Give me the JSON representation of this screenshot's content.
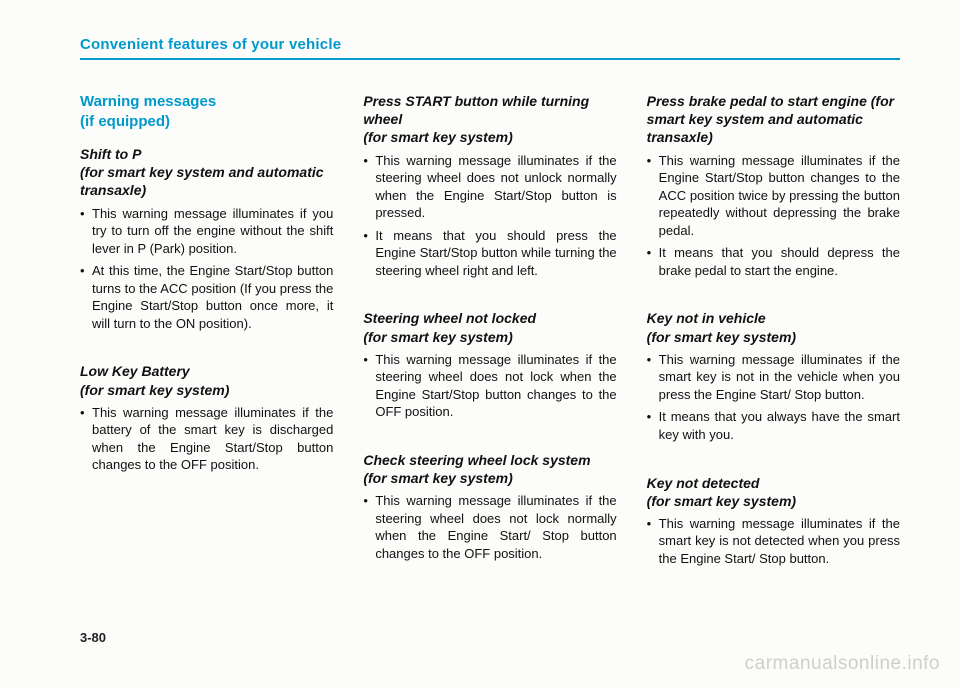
{
  "header": {
    "title": "Convenient features of your vehicle"
  },
  "col1": {
    "titleBlue": "Warning messages\n(if equipped)",
    "s1": {
      "head": "Shift to P\n(for smart key system and automatic transaxle)",
      "b1": "This warning message illuminates if you try to turn off the engine without the shift lever in P (Park) position.",
      "b2": "At this time, the Engine Start/Stop button turns to the ACC position (If you press the Engine Start/Stop button once more, it will turn to the ON position)."
    },
    "s2": {
      "head": "Low Key Battery\n(for smart key system)",
      "b1": "This warning message illuminates if the battery of the smart key is discharged when the Engine Start/Stop button changes to the OFF position."
    }
  },
  "col2": {
    "s1": {
      "head": "Press START button while turning wheel\n(for smart key system)",
      "b1": "This warning message illuminates if the steering wheel does not unlock normally when the Engine Start/Stop button is pressed.",
      "b2": "It means that you should press the Engine Start/Stop button while turning the steering wheel right and left."
    },
    "s2": {
      "head": "Steering wheel not locked\n(for smart key system)",
      "b1": "This warning message illuminates if the steering wheel does not lock when the Engine Start/Stop button changes to the OFF position."
    },
    "s3": {
      "head": "Check steering wheel lock system (for smart key system)",
      "b1": "This warning message illuminates if the steering wheel does not lock normally when the Engine Start/ Stop button changes to the OFF position."
    }
  },
  "col3": {
    "s1": {
      "head": "Press brake pedal to start engine (for smart key system and automatic transaxle)",
      "b1": "This warning message illuminates if the Engine Start/Stop button changes to the ACC position twice by pressing the button repeatedly without depressing the brake pedal.",
      "b2": "It means that you should depress the brake pedal to start the engine."
    },
    "s2": {
      "head": "Key not in vehicle\n(for smart key system)",
      "b1": "This warning message illuminates if the smart key is not in the vehicle when you press the Engine Start/ Stop button.",
      "b2": "It means that you always have the smart key with you."
    },
    "s3": {
      "head": "Key not detected\n(for smart key system)",
      "b1": "This warning message illuminates if the smart key is not detected when you press the Engine Start/ Stop button."
    }
  },
  "pageNumber": "3-80",
  "watermark": "carmanualsonline.info"
}
